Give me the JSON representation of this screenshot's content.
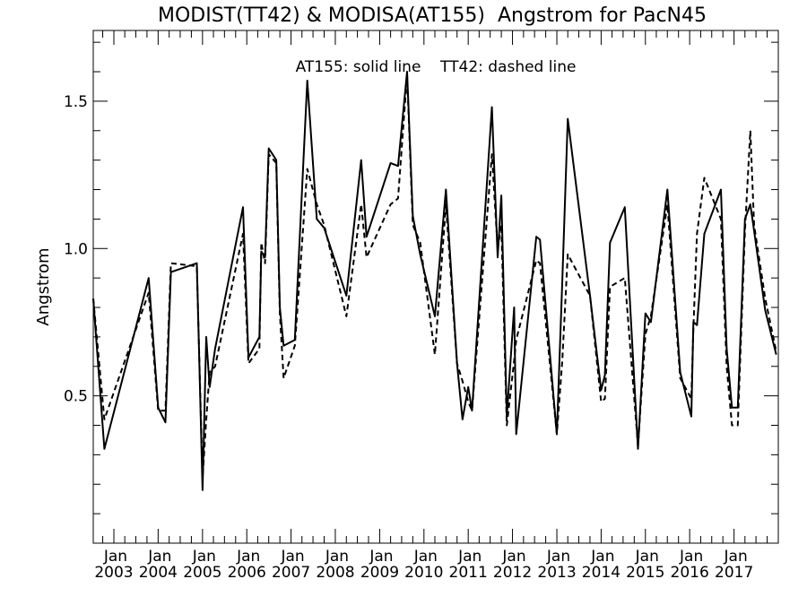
{
  "chart_data": {
    "type": "line",
    "title": "MODIST(TT42) & MODISA(AT155)  Angstrom for PacN45",
    "ylabel": "Angstrom",
    "xlabel": "",
    "annotation": "AT155: solid line    TT42: dashed line",
    "ylim": [
      0.0,
      1.74
    ],
    "xlim": [
      "2002-07-15",
      "2018-01-01"
    ],
    "grid": false,
    "y_ticks": [
      "0.5",
      "1.0",
      "1.5"
    ],
    "y_tick_values": [
      0.5,
      1.0,
      1.5
    ],
    "x_tick_month_label": "Jan",
    "x_tick_years": [
      "2003",
      "2004",
      "2005",
      "2006",
      "2007",
      "2008",
      "2009",
      "2010",
      "2011",
      "2012",
      "2013",
      "2014",
      "2015",
      "2016",
      "2017"
    ],
    "series": [
      {
        "name": "AT155",
        "style": "solid",
        "color": "#000000",
        "x": [
          "2002-07-15",
          "2002-10-15",
          "2003-10-15",
          "2004-01-01",
          "2004-03-01",
          "2004-04-15",
          "2004-11-15",
          "2005-01-01",
          "2005-02-01",
          "2005-03-01",
          "2005-04-15",
          "2005-12-01",
          "2006-01-15",
          "2006-04-15",
          "2006-05-01",
          "2006-06-01",
          "2006-07-01",
          "2006-09-01",
          "2006-10-01",
          "2006-11-01",
          "2007-02-01",
          "2007-05-15",
          "2007-08-01",
          "2007-10-01",
          "2008-04-01",
          "2008-08-01",
          "2008-09-15",
          "2009-04-01",
          "2009-06-01",
          "2009-08-15",
          "2009-10-01",
          "2009-12-01",
          "2010-04-01",
          "2010-07-01",
          "2010-10-01",
          "2010-11-15",
          "2011-01-01",
          "2011-02-01",
          "2011-07-15",
          "2011-09-01",
          "2011-10-01",
          "2011-11-15",
          "2012-01-15",
          "2012-02-01",
          "2012-07-15",
          "2012-08-15",
          "2013-01-01",
          "2013-02-15",
          "2013-04-01",
          "2013-10-01",
          "2014-01-01",
          "2014-02-01",
          "2014-03-15",
          "2014-07-15",
          "2014-11-01",
          "2015-01-01",
          "2015-02-15",
          "2015-07-01",
          "2015-10-15",
          "2016-01-15",
          "2016-02-01",
          "2016-03-01",
          "2016-05-01",
          "2016-09-15",
          "2016-11-01",
          "2016-12-15",
          "2017-02-01",
          "2017-04-01",
          "2017-05-15",
          "2017-06-15",
          "2017-09-15",
          "2017-12-15"
        ],
        "y": [
          0.83,
          0.32,
          0.9,
          0.46,
          0.41,
          0.92,
          0.95,
          0.18,
          0.7,
          0.53,
          0.66,
          1.14,
          0.63,
          0.7,
          0.99,
          0.97,
          1.34,
          1.3,
          0.8,
          0.67,
          0.69,
          1.57,
          1.1,
          1.07,
          0.84,
          1.3,
          1.04,
          1.29,
          1.28,
          1.6,
          1.11,
          0.98,
          0.77,
          1.2,
          0.61,
          0.42,
          0.53,
          0.45,
          1.48,
          0.97,
          1.18,
          0.43,
          0.8,
          0.37,
          1.04,
          1.03,
          0.37,
          0.89,
          1.44,
          0.84,
          0.52,
          0.57,
          1.02,
          1.14,
          0.32,
          0.78,
          0.75,
          1.2,
          0.58,
          0.43,
          0.75,
          0.74,
          1.05,
          1.2,
          0.66,
          0.46,
          0.46,
          1.1,
          1.15,
          1.06,
          0.79,
          0.64
        ]
      },
      {
        "name": "TT42",
        "style": "dashed",
        "color": "#000000",
        "x": [
          "2002-07-15",
          "2002-10-15",
          "2003-10-15",
          "2004-01-01",
          "2004-03-01",
          "2004-04-15",
          "2004-11-15",
          "2005-01-01",
          "2005-02-01",
          "2005-03-01",
          "2005-04-15",
          "2005-12-01",
          "2006-01-15",
          "2006-04-15",
          "2006-05-01",
          "2006-06-01",
          "2006-07-01",
          "2006-09-01",
          "2006-10-01",
          "2006-11-01",
          "2007-02-01",
          "2007-05-15",
          "2007-08-01",
          "2007-10-01",
          "2008-04-01",
          "2008-08-01",
          "2008-09-15",
          "2009-04-01",
          "2009-06-01",
          "2009-08-15",
          "2009-10-01",
          "2009-12-01",
          "2010-04-01",
          "2010-07-01",
          "2010-10-01",
          "2010-11-15",
          "2011-01-01",
          "2011-02-01",
          "2011-07-15",
          "2011-09-01",
          "2011-10-01",
          "2011-11-15",
          "2012-01-15",
          "2012-02-01",
          "2012-07-15",
          "2012-08-15",
          "2013-01-01",
          "2013-02-15",
          "2013-04-01",
          "2013-10-01",
          "2014-01-01",
          "2014-02-01",
          "2014-03-15",
          "2014-07-15",
          "2014-11-01",
          "2015-01-01",
          "2015-02-15",
          "2015-07-01",
          "2015-10-15",
          "2016-01-15",
          "2016-02-01",
          "2016-03-01",
          "2016-05-01",
          "2016-09-15",
          "2016-11-01",
          "2016-12-15",
          "2017-02-01",
          "2017-04-01",
          "2017-05-15",
          "2017-06-15",
          "2017-09-15",
          "2017-12-15"
        ],
        "y": [
          0.83,
          0.42,
          0.85,
          0.45,
          0.45,
          0.95,
          0.94,
          0.22,
          0.42,
          0.58,
          0.6,
          1.05,
          0.61,
          0.66,
          1.02,
          0.95,
          1.32,
          1.29,
          0.78,
          0.56,
          0.67,
          1.27,
          1.15,
          1.08,
          0.77,
          1.15,
          0.97,
          1.15,
          1.17,
          1.59,
          1.08,
          1.02,
          0.64,
          1.15,
          0.61,
          0.55,
          0.48,
          0.45,
          1.32,
          1.0,
          1.08,
          0.4,
          0.62,
          0.69,
          0.96,
          0.95,
          0.37,
          0.62,
          0.98,
          0.84,
          0.48,
          0.49,
          0.87,
          0.9,
          0.33,
          0.71,
          0.77,
          1.15,
          0.56,
          0.49,
          0.73,
          1.05,
          1.24,
          1.1,
          0.6,
          0.4,
          0.4,
          1.06,
          1.4,
          1.08,
          0.83,
          0.65
        ]
      }
    ]
  }
}
